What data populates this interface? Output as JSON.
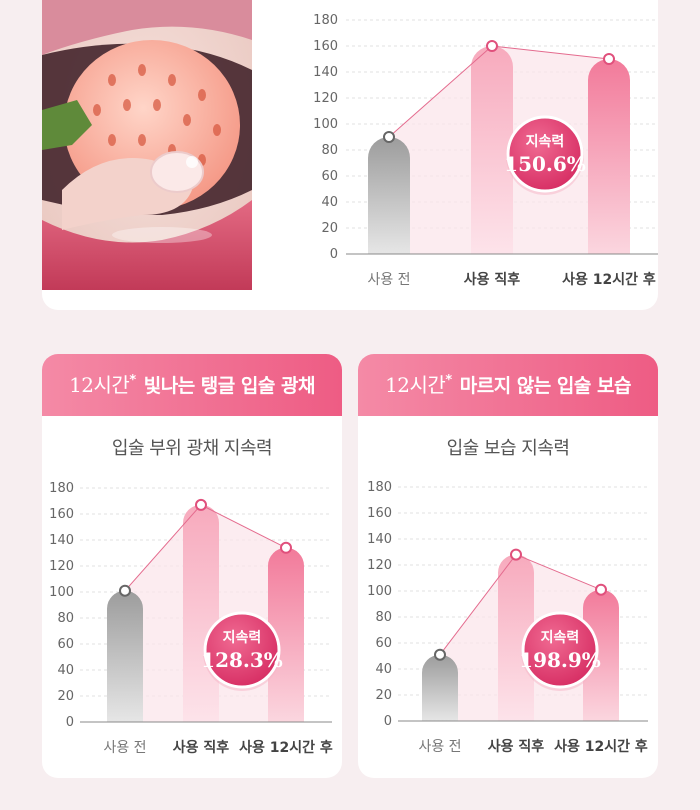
{
  "top_chart": {
    "chart_data": {
      "type": "bar",
      "categories": [
        "사용 전",
        "사용 직후",
        "사용 12시간 후"
      ],
      "values": [
        90,
        160,
        150
      ],
      "ylim": [
        0,
        180
      ],
      "yticks": [
        0,
        20,
        40,
        60,
        80,
        100,
        120,
        140,
        160,
        180
      ],
      "badge_label": "지속력",
      "badge_value": "150.6%",
      "colors": [
        "#a9a9a9",
        "#f6a9bd",
        "#f07c9c"
      ]
    }
  },
  "left_card": {
    "header_num": "12시간",
    "header_star": "*",
    "header_text": " 빛나는 탱글 입술 광채",
    "subtitle": "입술 부위 광채 지속력",
    "chart_data": {
      "type": "bar",
      "categories": [
        "사용 전",
        "사용 직후",
        "사용 12시간 후"
      ],
      "values": [
        101,
        167,
        134
      ],
      "ylim": [
        0,
        180
      ],
      "yticks": [
        0,
        20,
        40,
        60,
        80,
        100,
        120,
        140,
        160,
        180
      ],
      "badge_label": "지속력",
      "badge_value": "128.3%",
      "colors": [
        "#a9a9a9",
        "#f6a9bd",
        "#f07c9c"
      ]
    }
  },
  "right_card": {
    "header_num": "12시간",
    "header_star": "*",
    "header_text": " 마르지 않는 입술 보습",
    "subtitle": "입술 보습 지속력",
    "chart_data": {
      "type": "bar",
      "categories": [
        "사용 전",
        "사용 직후",
        "사용 12시간 후"
      ],
      "values": [
        51,
        128,
        101
      ],
      "ylim": [
        0,
        180
      ],
      "yticks": [
        0,
        20,
        40,
        60,
        80,
        100,
        120,
        140,
        160,
        180
      ],
      "badge_label": "지속력",
      "badge_value": "198.9%",
      "colors": [
        "#a9a9a9",
        "#f6a9bd",
        "#f07c9c"
      ]
    }
  }
}
